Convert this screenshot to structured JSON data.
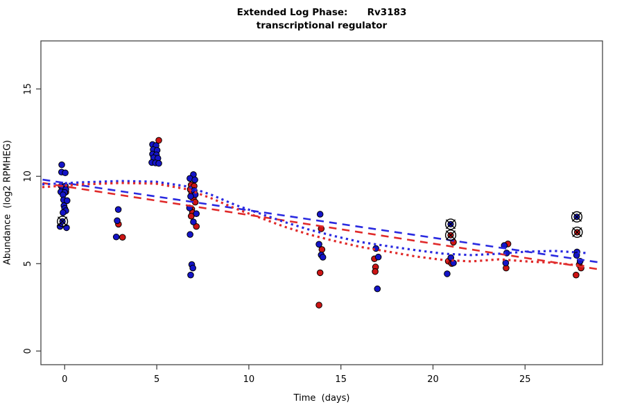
{
  "title": {
    "line1": "Extended Log Phase:      Rv3183",
    "line2": "transcriptional regulator"
  },
  "chart_data": {
    "type": "scatter",
    "xlabel": "Time  (days)",
    "ylabel": "Abundance  (log2 RPMHEG)",
    "x_ticks": [
      0,
      5,
      10,
      15,
      20,
      25
    ],
    "y_ticks": [
      0,
      5,
      10,
      15
    ],
    "xlim": [
      -1.2,
      29.2
    ],
    "ylim": [
      -0.8,
      17.7
    ],
    "grid": false,
    "legend": "none",
    "colors": {
      "series1": "#1414C8",
      "series2": "#CC1414",
      "line1": "#2A2AE0",
      "line2": "#E02A2A",
      "highlight_ring": "#000000",
      "box": "#444444"
    },
    "series": [
      {
        "name": "red-points",
        "color_key": "series2",
        "points": [
          [
            -0.12,
            9.3
          ],
          [
            0.06,
            9.1
          ],
          [
            2.92,
            7.26
          ],
          [
            3.14,
            6.51
          ],
          [
            5.11,
            12.06
          ],
          [
            4.93,
            11.36
          ],
          [
            6.87,
            9.51
          ],
          [
            7.03,
            9.44
          ],
          [
            6.82,
            9.25
          ],
          [
            6.9,
            9.05
          ],
          [
            6.99,
            8.71
          ],
          [
            7.09,
            8.52
          ],
          [
            6.9,
            8.12
          ],
          [
            6.94,
            7.92
          ],
          [
            6.87,
            7.72
          ],
          [
            7.15,
            7.13
          ],
          [
            13.93,
            7.0
          ],
          [
            13.97,
            5.81
          ],
          [
            13.87,
            4.48
          ],
          [
            13.81,
            2.63
          ],
          [
            16.82,
            5.28
          ],
          [
            16.88,
            4.81
          ],
          [
            16.86,
            4.55
          ],
          [
            21.11,
            6.23
          ],
          [
            20.83,
            5.14
          ],
          [
            21.02,
            5.01
          ],
          [
            24.07,
            6.13
          ],
          [
            23.97,
            4.75
          ],
          [
            27.94,
            4.94
          ],
          [
            28.04,
            4.75
          ],
          [
            27.77,
            4.35
          ]
        ]
      },
      {
        "name": "blue-points",
        "color_key": "series1",
        "points": [
          [
            -0.16,
            10.66
          ],
          [
            -0.17,
            10.24
          ],
          [
            0.03,
            10.2
          ],
          [
            -0.19,
            9.44
          ],
          [
            0.03,
            9.44
          ],
          [
            -0.12,
            9.28
          ],
          [
            0.06,
            9.25
          ],
          [
            -0.21,
            9.11
          ],
          [
            0.0,
            9.07
          ],
          [
            -0.09,
            8.94
          ],
          [
            -0.06,
            8.65
          ],
          [
            0.13,
            8.61
          ],
          [
            -0.04,
            8.32
          ],
          [
            0.0,
            8.16
          ],
          [
            0.06,
            8.03
          ],
          [
            -0.09,
            7.92
          ],
          [
            -0.25,
            7.13
          ],
          [
            0.1,
            7.06
          ],
          [
            2.91,
            8.1
          ],
          [
            2.85,
            7.46
          ],
          [
            2.8,
            6.53
          ],
          [
            4.77,
            11.82
          ],
          [
            4.96,
            11.76
          ],
          [
            4.81,
            11.53
          ],
          [
            5.02,
            11.49
          ],
          [
            4.77,
            11.27
          ],
          [
            4.98,
            11.23
          ],
          [
            4.83,
            11.06
          ],
          [
            5.06,
            11.03
          ],
          [
            4.73,
            10.79
          ],
          [
            4.93,
            10.77
          ],
          [
            5.11,
            10.74
          ],
          [
            6.99,
            10.1
          ],
          [
            6.8,
            9.88
          ],
          [
            7.07,
            9.8
          ],
          [
            7.03,
            9.18
          ],
          [
            7.09,
            8.95
          ],
          [
            6.84,
            8.85
          ],
          [
            6.78,
            8.19
          ],
          [
            7.15,
            7.86
          ],
          [
            6.99,
            7.39
          ],
          [
            6.81,
            6.67
          ],
          [
            6.9,
            4.95
          ],
          [
            6.96,
            4.75
          ],
          [
            6.84,
            4.35
          ],
          [
            13.87,
            7.83
          ],
          [
            13.81,
            6.11
          ],
          [
            13.93,
            5.5
          ],
          [
            14.02,
            5.37
          ],
          [
            16.9,
            5.87
          ],
          [
            17.03,
            5.38
          ],
          [
            16.98,
            3.56
          ],
          [
            20.97,
            5.34
          ],
          [
            21.11,
            5.04
          ],
          [
            20.77,
            4.42
          ],
          [
            23.87,
            6.04
          ],
          [
            24.0,
            5.61
          ],
          [
            23.95,
            5.04
          ],
          [
            27.82,
            5.67
          ],
          [
            27.8,
            5.48
          ],
          [
            27.99,
            5.14
          ]
        ]
      }
    ],
    "highlighted_points": [
      {
        "x": -0.12,
        "y": 7.42,
        "series": "series1"
      },
      {
        "x": 20.96,
        "y": 7.26,
        "series": "series1"
      },
      {
        "x": 20.96,
        "y": 6.63,
        "series": "series2"
      },
      {
        "x": 27.81,
        "y": 7.68,
        "series": "series1"
      },
      {
        "x": 27.83,
        "y": 6.8,
        "series": "series2"
      }
    ],
    "trend_lines": [
      {
        "name": "blue-linear",
        "style": "dashed",
        "color_key": "line1",
        "points": [
          [
            -1.2,
            9.81
          ],
          [
            29.17,
            5.05
          ]
        ]
      },
      {
        "name": "red-linear",
        "style": "dashed",
        "color_key": "line2",
        "points": [
          [
            -1.2,
            9.62
          ],
          [
            29.17,
            4.65
          ]
        ]
      },
      {
        "name": "blue-smooth",
        "style": "dotted",
        "color_key": "line1",
        "points": [
          [
            -1.22,
            9.54
          ],
          [
            1.01,
            9.66
          ],
          [
            3.08,
            9.73
          ],
          [
            4.96,
            9.69
          ],
          [
            6.65,
            9.42
          ],
          [
            7.97,
            8.94
          ],
          [
            9.29,
            8.35
          ],
          [
            10.61,
            7.87
          ],
          [
            11.92,
            7.39
          ],
          [
            13.24,
            6.96
          ],
          [
            14.56,
            6.6
          ],
          [
            16.06,
            6.24
          ],
          [
            17.57,
            6.0
          ],
          [
            19.08,
            5.77
          ],
          [
            20.58,
            5.57
          ],
          [
            22.09,
            5.49
          ],
          [
            23.59,
            5.57
          ],
          [
            25.1,
            5.69
          ],
          [
            26.61,
            5.73
          ],
          [
            28.3,
            5.61
          ]
        ]
      },
      {
        "name": "red-smooth",
        "style": "dotted",
        "color_key": "line2",
        "points": [
          [
            -1.22,
            9.38
          ],
          [
            1.01,
            9.54
          ],
          [
            3.08,
            9.62
          ],
          [
            4.96,
            9.58
          ],
          [
            6.65,
            9.26
          ],
          [
            7.97,
            8.74
          ],
          [
            9.29,
            8.15
          ],
          [
            10.61,
            7.63
          ],
          [
            11.92,
            7.12
          ],
          [
            13.24,
            6.68
          ],
          [
            14.56,
            6.32
          ],
          [
            16.06,
            5.96
          ],
          [
            17.57,
            5.69
          ],
          [
            19.08,
            5.41
          ],
          [
            20.58,
            5.21
          ],
          [
            22.09,
            5.13
          ],
          [
            23.59,
            5.25
          ],
          [
            25.1,
            5.13
          ],
          [
            26.61,
            5.05
          ],
          [
            28.3,
            4.85
          ]
        ]
      }
    ]
  }
}
